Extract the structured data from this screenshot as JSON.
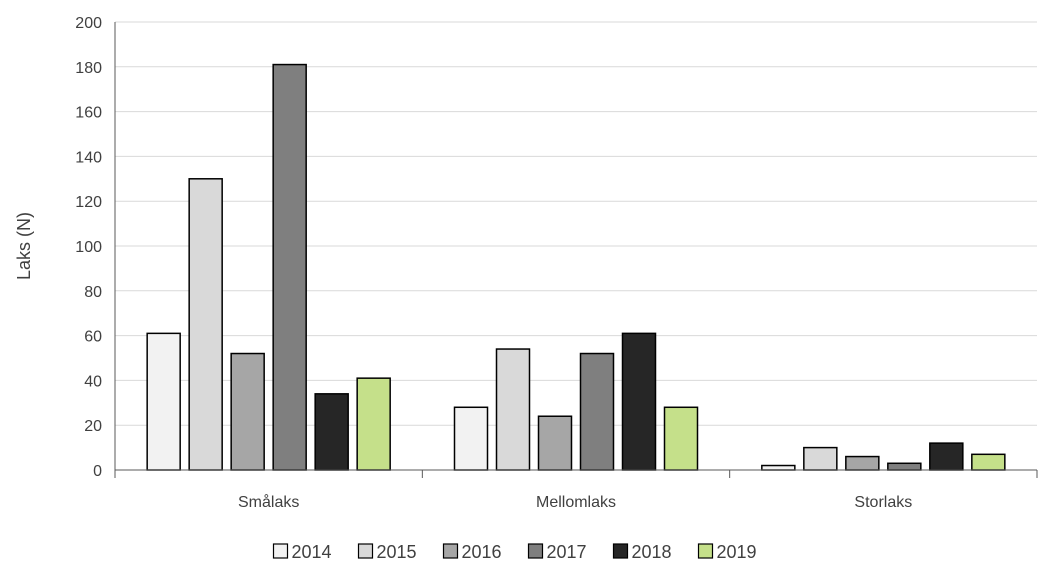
{
  "chart_data": {
    "type": "bar",
    "title": "",
    "xlabel": "",
    "ylabel": "Laks (N)",
    "ylim": [
      0,
      200
    ],
    "yticks": [
      0,
      20,
      40,
      60,
      80,
      100,
      120,
      140,
      160,
      180,
      200
    ],
    "grid": true,
    "legend_position": "bottom",
    "categories": [
      "Smålaks",
      "Mellomlaks",
      "Storlaks"
    ],
    "series": [
      {
        "name": "2014",
        "color": "#f2f2f2",
        "values": [
          61,
          28,
          2
        ]
      },
      {
        "name": "2015",
        "color": "#d9d9d9",
        "values": [
          130,
          54,
          10
        ]
      },
      {
        "name": "2016",
        "color": "#a6a6a6",
        "values": [
          52,
          24,
          6
        ]
      },
      {
        "name": "2017",
        "color": "#7f7f7f",
        "values": [
          181,
          52,
          3
        ]
      },
      {
        "name": "2018",
        "color": "#262626",
        "values": [
          34,
          61,
          12
        ]
      },
      {
        "name": "2019",
        "color": "#c5e08a",
        "values": [
          41,
          28,
          7
        ]
      }
    ]
  }
}
